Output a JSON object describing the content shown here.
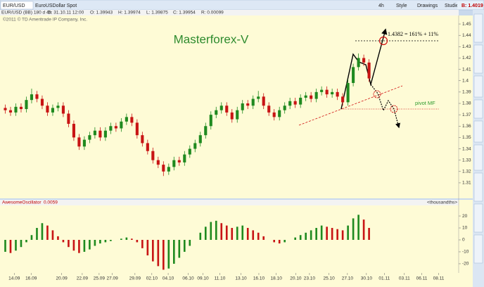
{
  "window": {
    "symbol_tab": "EUR/USD",
    "description": "EuroUSDollar Spot",
    "timeframe": "4h",
    "menu": [
      "Style",
      "Drawings",
      "Studies"
    ],
    "bid": "B: 1.4019"
  },
  "info_bar": [
    "EUR/USD (BB) 180 d 4h",
    "D: 31.10.11 12:00",
    "O: 1.39943",
    "H: 1.39974",
    "L: 1.39875",
    "C: 1.39954",
    "R: 0.00099"
  ],
  "chart_data": [
    {
      "type": "candlestick",
      "copyright": "©2011 © TD Ameritrade IP Company, Inc.",
      "annotations": [
        "Masterforex-V",
        "1.4382 = 161% + 11%",
        "pivot MF"
      ],
      "up_color": "#1f8a1f",
      "down_color": "#c81414",
      "xlim": [
        0,
        87
      ],
      "ylim": [
        1.305,
        1.455
      ],
      "yticks": [
        1.31,
        1.32,
        1.33,
        1.34,
        1.35,
        1.36,
        1.37,
        1.38,
        1.39,
        1.4,
        1.41,
        1.42,
        1.43,
        1.44,
        1.45
      ],
      "x": [
        1,
        2,
        3,
        4,
        5,
        6,
        7,
        8,
        9,
        10,
        11,
        12,
        13,
        14,
        15,
        16,
        17,
        18,
        19,
        20,
        21,
        22,
        23,
        24,
        25,
        26,
        27,
        28,
        29,
        30,
        31,
        32,
        33,
        34,
        35,
        36,
        37,
        38,
        39,
        40,
        41,
        42,
        43,
        44,
        45,
        46,
        47,
        48,
        49,
        50,
        51,
        52,
        53,
        54,
        55,
        56,
        57,
        58,
        59,
        60,
        61,
        62,
        63,
        64,
        65,
        66,
        67,
        68,
        69,
        70
      ],
      "ohlc": [
        [
          1.376,
          1.379,
          1.371,
          1.374
        ],
        [
          1.374,
          1.377,
          1.369,
          1.372
        ],
        [
          1.372,
          1.38,
          1.369,
          1.377
        ],
        [
          1.377,
          1.38,
          1.372,
          1.375
        ],
        [
          1.375,
          1.386,
          1.372,
          1.383
        ],
        [
          1.383,
          1.393,
          1.38,
          1.388
        ],
        [
          1.388,
          1.391,
          1.381,
          1.384
        ],
        [
          1.384,
          1.387,
          1.375,
          1.378
        ],
        [
          1.378,
          1.381,
          1.369,
          1.372
        ],
        [
          1.372,
          1.379,
          1.369,
          1.376
        ],
        [
          1.376,
          1.381,
          1.373,
          1.378
        ],
        [
          1.378,
          1.381,
          1.368,
          1.371
        ],
        [
          1.371,
          1.374,
          1.359,
          1.362
        ],
        [
          1.362,
          1.365,
          1.347,
          1.35
        ],
        [
          1.35,
          1.353,
          1.339,
          1.342
        ],
        [
          1.342,
          1.351,
          1.339,
          1.348
        ],
        [
          1.348,
          1.355,
          1.345,
          1.352
        ],
        [
          1.352,
          1.359,
          1.349,
          1.356
        ],
        [
          1.356,
          1.359,
          1.347,
          1.35
        ],
        [
          1.35,
          1.359,
          1.347,
          1.356
        ],
        [
          1.356,
          1.363,
          1.353,
          1.36
        ],
        [
          1.36,
          1.363,
          1.355,
          1.358
        ],
        [
          1.358,
          1.367,
          1.355,
          1.364
        ],
        [
          1.364,
          1.371,
          1.361,
          1.368
        ],
        [
          1.368,
          1.371,
          1.36,
          1.363
        ],
        [
          1.363,
          1.366,
          1.349,
          1.352
        ],
        [
          1.352,
          1.355,
          1.342,
          1.345
        ],
        [
          1.345,
          1.348,
          1.335,
          1.338
        ],
        [
          1.338,
          1.341,
          1.327,
          1.33
        ],
        [
          1.33,
          1.333,
          1.323,
          1.326
        ],
        [
          1.326,
          1.329,
          1.316,
          1.32
        ],
        [
          1.32,
          1.327,
          1.317,
          1.324
        ],
        [
          1.324,
          1.333,
          1.321,
          1.33
        ],
        [
          1.33,
          1.333,
          1.325,
          1.328
        ],
        [
          1.328,
          1.338,
          1.325,
          1.335
        ],
        [
          1.335,
          1.343,
          1.332,
          1.34
        ],
        [
          1.34,
          1.348,
          1.337,
          1.345
        ],
        [
          1.345,
          1.355,
          1.342,
          1.352
        ],
        [
          1.352,
          1.363,
          1.349,
          1.36
        ],
        [
          1.36,
          1.373,
          1.357,
          1.37
        ],
        [
          1.37,
          1.377,
          1.367,
          1.374
        ],
        [
          1.374,
          1.381,
          1.371,
          1.378
        ],
        [
          1.378,
          1.381,
          1.369,
          1.372
        ],
        [
          1.372,
          1.375,
          1.363,
          1.366
        ],
        [
          1.366,
          1.377,
          1.363,
          1.374
        ],
        [
          1.374,
          1.383,
          1.371,
          1.38
        ],
        [
          1.38,
          1.383,
          1.375,
          1.378
        ],
        [
          1.378,
          1.387,
          1.375,
          1.384
        ],
        [
          1.384,
          1.391,
          1.381,
          1.386
        ],
        [
          1.386,
          1.389,
          1.375,
          1.378
        ],
        [
          1.378,
          1.381,
          1.369,
          1.372
        ],
        [
          1.372,
          1.375,
          1.365,
          1.368
        ],
        [
          1.368,
          1.377,
          1.365,
          1.374
        ],
        [
          1.374,
          1.381,
          1.371,
          1.378
        ],
        [
          1.378,
          1.385,
          1.375,
          1.382
        ],
        [
          1.382,
          1.385,
          1.376,
          1.379
        ],
        [
          1.379,
          1.388,
          1.376,
          1.385
        ],
        [
          1.385,
          1.39,
          1.382,
          1.387
        ],
        [
          1.387,
          1.39,
          1.381,
          1.384
        ],
        [
          1.384,
          1.393,
          1.381,
          1.39
        ],
        [
          1.39,
          1.395,
          1.387,
          1.392
        ],
        [
          1.392,
          1.395,
          1.385,
          1.388
        ],
        [
          1.388,
          1.393,
          1.385,
          1.39
        ],
        [
          1.39,
          1.393,
          1.383,
          1.386
        ],
        [
          1.386,
          1.389,
          1.378,
          1.381
        ],
        [
          1.381,
          1.401,
          1.378,
          1.398
        ],
        [
          1.398,
          1.415,
          1.395,
          1.412
        ],
        [
          1.412,
          1.424,
          1.409,
          1.42
        ],
        [
          1.42,
          1.423,
          1.413,
          1.416
        ],
        [
          1.416,
          1.419,
          1.399,
          1.402
        ]
      ]
    },
    {
      "type": "bar",
      "title": "AwesomeOscillator",
      "value_label": "0.0059",
      "unit_label": "<thousandths>",
      "up_color": "#1f8a1f",
      "down_color": "#c81414",
      "xlim": [
        0,
        87
      ],
      "ylim": [
        -26.5,
        26.5
      ],
      "yticks": [
        -20,
        -10,
        0,
        10,
        20
      ],
      "xticks": [
        {
          "value": 2.7,
          "label": "14.09"
        },
        {
          "value": 5.9,
          "label": "16.09"
        },
        {
          "value": 11.7,
          "label": "20.09"
        },
        {
          "value": 15.6,
          "label": "22.09"
        },
        {
          "value": 18.8,
          "label": "25.09"
        },
        {
          "value": 21.3,
          "label": "27.09"
        },
        {
          "value": 25.6,
          "label": "29.09"
        },
        {
          "value": 28.8,
          "label": "02.10"
        },
        {
          "value": 31.9,
          "label": "04.10"
        },
        {
          "value": 35.7,
          "label": "06.10"
        },
        {
          "value": 38.5,
          "label": "09.10"
        },
        {
          "value": 41.7,
          "label": "11.10"
        },
        {
          "value": 45.7,
          "label": "13.10"
        },
        {
          "value": 49.1,
          "label": "16.10"
        },
        {
          "value": 52.4,
          "label": "18.10"
        },
        {
          "value": 56.1,
          "label": "20.10"
        },
        {
          "value": 58.7,
          "label": "23.10"
        },
        {
          "value": 62.4,
          "label": "25.10"
        },
        {
          "value": 65.9,
          "label": "27.10"
        },
        {
          "value": 69.5,
          "label": "30.10"
        },
        {
          "value": 72.9,
          "label": "01.11"
        },
        {
          "value": 76.7,
          "label": "03.11"
        },
        {
          "value": 80,
          "label": "06.11"
        },
        {
          "value": 83.2,
          "label": "08.11"
        }
      ],
      "x": [
        1,
        2,
        3,
        4,
        5,
        6,
        7,
        8,
        9,
        10,
        11,
        12,
        13,
        14,
        15,
        16,
        17,
        18,
        19,
        20,
        21,
        22,
        23,
        24,
        25,
        26,
        27,
        28,
        29,
        30,
        31,
        32,
        33,
        34,
        35,
        36,
        37,
        38,
        39,
        40,
        41,
        42,
        43,
        44,
        45,
        46,
        47,
        48,
        49,
        50,
        51,
        52,
        53,
        54,
        55,
        56,
        57,
        58,
        59,
        60,
        61,
        62,
        63,
        64,
        65,
        66,
        67,
        68,
        69,
        70
      ],
      "values": [
        -10,
        -11,
        -9,
        -6,
        -2,
        4,
        10,
        14,
        12,
        8,
        3,
        -2,
        -6,
        -9,
        -11,
        -10,
        -8,
        -5,
        -3,
        -2,
        -1,
        0,
        1,
        2,
        1,
        -2,
        -7,
        -13,
        -18,
        -22,
        -25,
        -24,
        -20,
        -15,
        -10,
        -5,
        0,
        6,
        11,
        15,
        16,
        14,
        12,
        10,
        11,
        12,
        10,
        8,
        6,
        3,
        0,
        -2,
        -3,
        -2,
        0,
        2,
        4,
        6,
        8,
        10,
        12,
        11,
        10,
        9,
        8,
        12,
        18,
        21,
        17,
        10
      ]
    }
  ]
}
